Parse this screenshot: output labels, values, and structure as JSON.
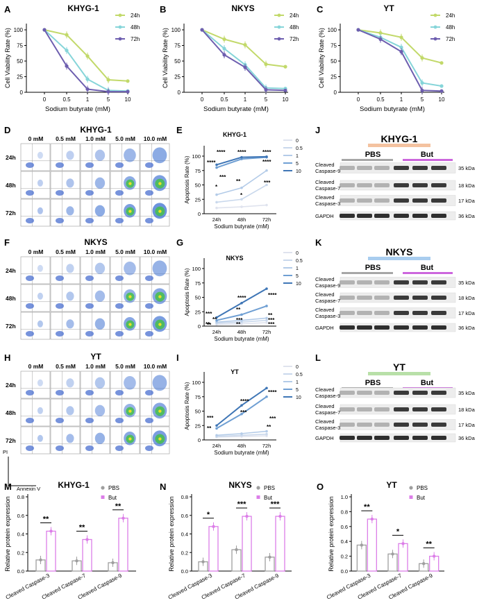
{
  "colors": {
    "h24": "#c2d96a",
    "h48": "#86d5d9",
    "h72": "#6d5eaf",
    "c0": "#dfe3ee",
    "c05": "#c9d8ec",
    "c1": "#b3cbe8",
    "c5": "#6f9fd3",
    "c10": "#3f76b6",
    "pbs": "#9e9e9e",
    "but": "#dc7ee8",
    "khyg_bar": "#f4c2a0",
    "nkys_bar": "#a9cdef",
    "yt_bar": "#b8e0a8",
    "pbs_bar": "#a6a6a6",
    "but_bar": "#cc66dd"
  },
  "panels": {
    "A": "A",
    "B": "B",
    "C": "C",
    "D": "D",
    "E": "E",
    "F": "F",
    "G": "G",
    "H": "H",
    "I": "I",
    "J": "J",
    "K": "K",
    "L": "L",
    "M": "M",
    "N": "N",
    "O": "O"
  },
  "viability": {
    "ylabel": "Cell Viability Rate (%)",
    "xlabel": "Sodium butyrate (mM)",
    "x_ticks": [
      "0",
      "0.5",
      "1",
      "5",
      "10"
    ],
    "y_ticks": [
      "0",
      "25",
      "50",
      "75",
      "100"
    ],
    "legend": [
      "24h",
      "48h",
      "72h"
    ]
  },
  "flow": {
    "concs": [
      "0 mM",
      "0.5 mM",
      "1.0 mM",
      "5.0 mM",
      "10.0 mM"
    ],
    "times": [
      "24h",
      "48h",
      "72h"
    ],
    "pi_label": "PI",
    "annexin_label": "Annexin V"
  },
  "apoptosis": {
    "ylabel": "Apoptosis Rate (%)",
    "xlabel": "Sodium butyrate (mM)",
    "x_ticks": [
      "24h",
      "48h",
      "72h"
    ],
    "y_ticks": [
      "0",
      "25",
      "50",
      "75",
      "100"
    ],
    "legend": [
      "0",
      "0.5",
      "1",
      "5",
      "10"
    ]
  },
  "western": {
    "groups": [
      "PBS",
      "But"
    ],
    "rows": [
      {
        "label1": "Cleaved",
        "label2": "Caspase-9",
        "kda": "35 kDa"
      },
      {
        "label1": "Cleaved",
        "label2": "Caspase-7",
        "kda": "18 kDa"
      },
      {
        "label1": "Cleaved",
        "label2": "Caspase-3",
        "kda": "17 kDa"
      },
      {
        "label1": "GAPDH",
        "label2": "",
        "kda": "36 kDa"
      }
    ]
  },
  "bars": {
    "ylabel": "Relative protein expression",
    "categories": [
      "Cleaved Caspase-3",
      "Cleaved Caspase-7",
      "Cleaved Caspase-9"
    ],
    "legend": [
      "PBS",
      "But"
    ]
  },
  "chart_data": [
    {
      "panel": "A",
      "type": "line",
      "title": "KHYG-1",
      "xlabel": "Sodium butyrate (mM)",
      "ylabel": "Cell Viability Rate (%)",
      "categories": [
        "0",
        "0.5",
        "1",
        "5",
        "10"
      ],
      "ylim": [
        0,
        110
      ],
      "series": [
        {
          "name": "24h",
          "values": [
            100,
            92,
            58,
            20,
            18
          ]
        },
        {
          "name": "48h",
          "values": [
            100,
            67,
            21,
            3,
            2
          ]
        },
        {
          "name": "72h",
          "values": [
            100,
            42,
            5,
            1,
            1
          ]
        }
      ]
    },
    {
      "panel": "B",
      "type": "line",
      "title": "NKYS",
      "xlabel": "Sodium butyrate (mM)",
      "ylabel": "Cell Viability Rate (%)",
      "categories": [
        "0",
        "0.5",
        "1",
        "5",
        "10"
      ],
      "ylim": [
        0,
        110
      ],
      "series": [
        {
          "name": "24h",
          "values": [
            100,
            85,
            76,
            45,
            41
          ]
        },
        {
          "name": "48h",
          "values": [
            100,
            70,
            44,
            7,
            6
          ]
        },
        {
          "name": "72h",
          "values": [
            100,
            60,
            40,
            4,
            3
          ]
        }
      ]
    },
    {
      "panel": "C",
      "type": "line",
      "title": "YT",
      "xlabel": "Sodium butyrate (mM)",
      "ylabel": "Cell Viability Rate (%)",
      "categories": [
        "0",
        "0.5",
        "1",
        "5",
        "10"
      ],
      "ylim": [
        0,
        110
      ],
      "series": [
        {
          "name": "24h",
          "values": [
            100,
            95,
            88,
            55,
            47
          ]
        },
        {
          "name": "48h",
          "values": [
            100,
            88,
            72,
            15,
            10
          ]
        },
        {
          "name": "72h",
          "values": [
            100,
            85,
            65,
            3,
            2
          ]
        }
      ]
    },
    {
      "panel": "E",
      "type": "line",
      "title": "KHYG-1",
      "xlabel": "Sodium butyrate (mM)",
      "ylabel": "Apoptosis Rate (%)",
      "categories": [
        "24h",
        "48h",
        "72h"
      ],
      "ylim": [
        0,
        110
      ],
      "series": [
        {
          "name": "0",
          "values": [
            10,
            12,
            15
          ]
        },
        {
          "name": "0.5",
          "values": [
            20,
            25,
            50
          ]
        },
        {
          "name": "1",
          "values": [
            33,
            45,
            75
          ]
        },
        {
          "name": "5",
          "values": [
            80,
            95,
            98
          ]
        },
        {
          "name": "10",
          "values": [
            85,
            98,
            99
          ]
        }
      ],
      "annotations": [
        "****",
        "****",
        "****",
        "****",
        "****",
        "*",
        "**",
        "***",
        "*",
        "***"
      ]
    },
    {
      "panel": "G",
      "type": "line",
      "title": "NKYS",
      "xlabel": "Sodium butyrate (mM)",
      "ylabel": "Apoptosis Rate (%)",
      "categories": [
        "24h",
        "48h",
        "72h"
      ],
      "ylim": [
        0,
        110
      ],
      "series": [
        {
          "name": "0",
          "values": [
            3,
            4,
            6
          ]
        },
        {
          "name": "0.5",
          "values": [
            5,
            7,
            10
          ]
        },
        {
          "name": "1",
          "values": [
            7,
            10,
            14
          ]
        },
        {
          "name": "5",
          "values": [
            10,
            20,
            35
          ]
        },
        {
          "name": "10",
          "values": [
            15,
            40,
            65
          ]
        }
      ],
      "annotations": [
        "***",
        "****",
        "****",
        "**",
        "**",
        "**",
        "***",
        "***",
        "**",
        "**",
        "**",
        "***"
      ]
    },
    {
      "panel": "I",
      "type": "line",
      "title": "YT",
      "xlabel": "Sodium butyrate (mM)",
      "ylabel": "Apoptosis Rate (%)",
      "categories": [
        "24h",
        "48h",
        "72h"
      ],
      "ylim": [
        0,
        110
      ],
      "series": [
        {
          "name": "0",
          "values": [
            5,
            6,
            7
          ]
        },
        {
          "name": "0.5",
          "values": [
            6,
            8,
            10
          ]
        },
        {
          "name": "1",
          "values": [
            8,
            11,
            15
          ]
        },
        {
          "name": "5",
          "values": [
            20,
            45,
            75
          ]
        },
        {
          "name": "10",
          "values": [
            25,
            60,
            90
          ]
        }
      ],
      "annotations": [
        "***",
        "****",
        "****",
        "**",
        "***",
        "***",
        "**"
      ]
    },
    {
      "panel": "M",
      "type": "bar",
      "title": "KHYG-1",
      "ylabel": "Relative protein expression",
      "categories": [
        "Cleaved Caspase-3",
        "Cleaved Caspase-7",
        "Cleaved Caspase-9"
      ],
      "y_ticks": [
        "0.0",
        "0.2",
        "0.4",
        "0.6",
        "0.8"
      ],
      "ylim": [
        0,
        0.8
      ],
      "series": [
        {
          "name": "PBS",
          "values": [
            0.12,
            0.11,
            0.09
          ]
        },
        {
          "name": "But",
          "values": [
            0.43,
            0.34,
            0.57
          ]
        }
      ],
      "annotations": [
        "**",
        "**",
        "**"
      ]
    },
    {
      "panel": "N",
      "type": "bar",
      "title": "NKYS",
      "ylabel": "Relative protein expression",
      "categories": [
        "Cleaved Caspase-3",
        "Cleaved Caspase-7",
        "Cleaved Caspase-9"
      ],
      "y_ticks": [
        "0.0",
        "0.2",
        "0.4",
        "0.6",
        "0.8"
      ],
      "ylim": [
        0,
        0.8
      ],
      "series": [
        {
          "name": "PBS",
          "values": [
            0.1,
            0.23,
            0.15
          ]
        },
        {
          "name": "But",
          "values": [
            0.48,
            0.59,
            0.59
          ]
        }
      ],
      "annotations": [
        "*",
        "***",
        "***"
      ]
    },
    {
      "panel": "O",
      "type": "bar",
      "title": "YT",
      "ylabel": "Relative protein expression",
      "categories": [
        "Cleaved Caspase-3",
        "Cleaved Caspase-7",
        "Cleaved Caspase-9"
      ],
      "y_ticks": [
        "0.0",
        "0.2",
        "0.4",
        "0.6",
        "0.8",
        "1.0"
      ],
      "ylim": [
        0,
        1.0
      ],
      "series": [
        {
          "name": "PBS",
          "values": [
            0.35,
            0.23,
            0.1
          ]
        },
        {
          "name": "But",
          "values": [
            0.7,
            0.37,
            0.2
          ]
        }
      ],
      "annotations": [
        "**",
        "*",
        "**"
      ]
    }
  ]
}
